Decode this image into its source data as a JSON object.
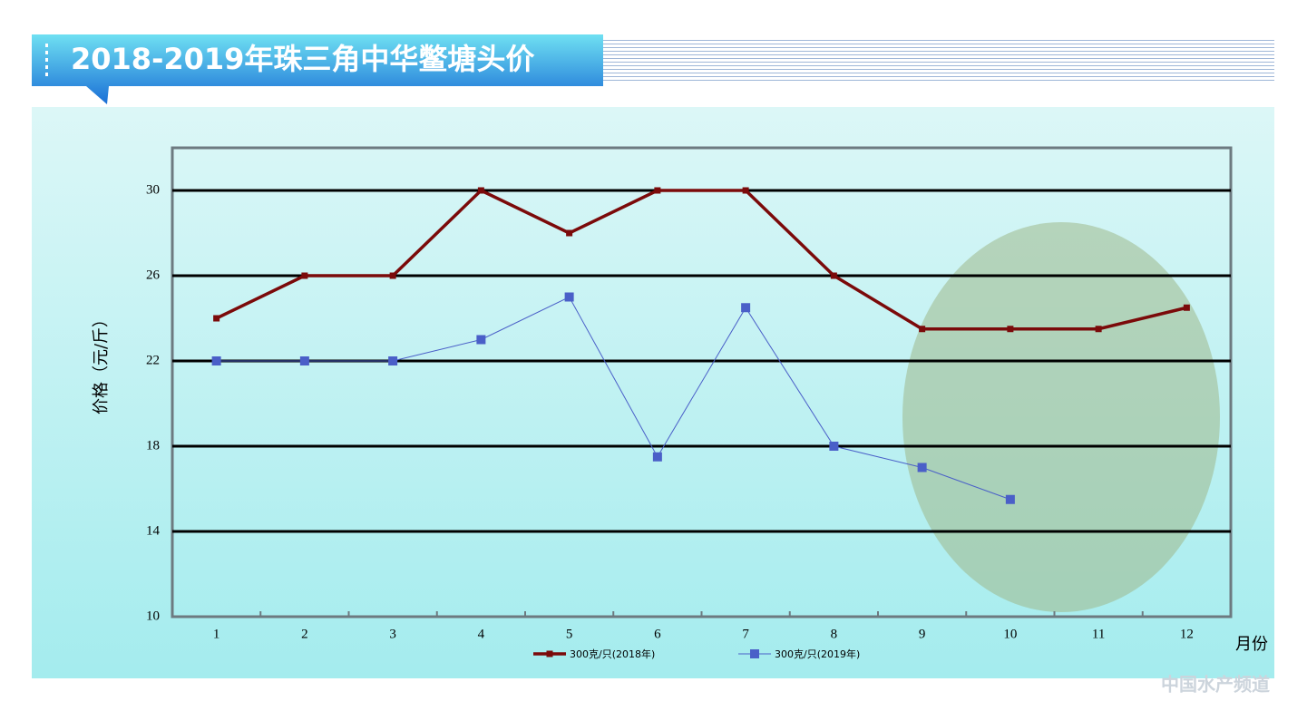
{
  "chart_data": {
    "type": "line",
    "title": "2018-2019年珠三角中华鳖塘头价",
    "y_label": "价格（元/斤）",
    "x_label": "月份",
    "watermark": "中国水产频道",
    "categories": [
      "1",
      "2",
      "3",
      "4",
      "5",
      "6",
      "7",
      "8",
      "9",
      "10",
      "11",
      "12"
    ],
    "series": [
      {
        "name": "300克/只(2018年)",
        "color": "#7b0a0a",
        "values": [
          24,
          26,
          26,
          30,
          28,
          30,
          30,
          26,
          23.5,
          23.5,
          23.5,
          24.5
        ]
      },
      {
        "name": "300克/只(2019年)",
        "color": "#4a5fc8",
        "values": [
          22,
          22,
          22,
          23,
          25,
          17.5,
          24.5,
          18,
          17,
          15.5,
          null,
          null
        ]
      }
    ],
    "ylim": [
      10,
      32
    ],
    "yticks": [
      10,
      14,
      18,
      22,
      26,
      30
    ],
    "grid": true
  }
}
